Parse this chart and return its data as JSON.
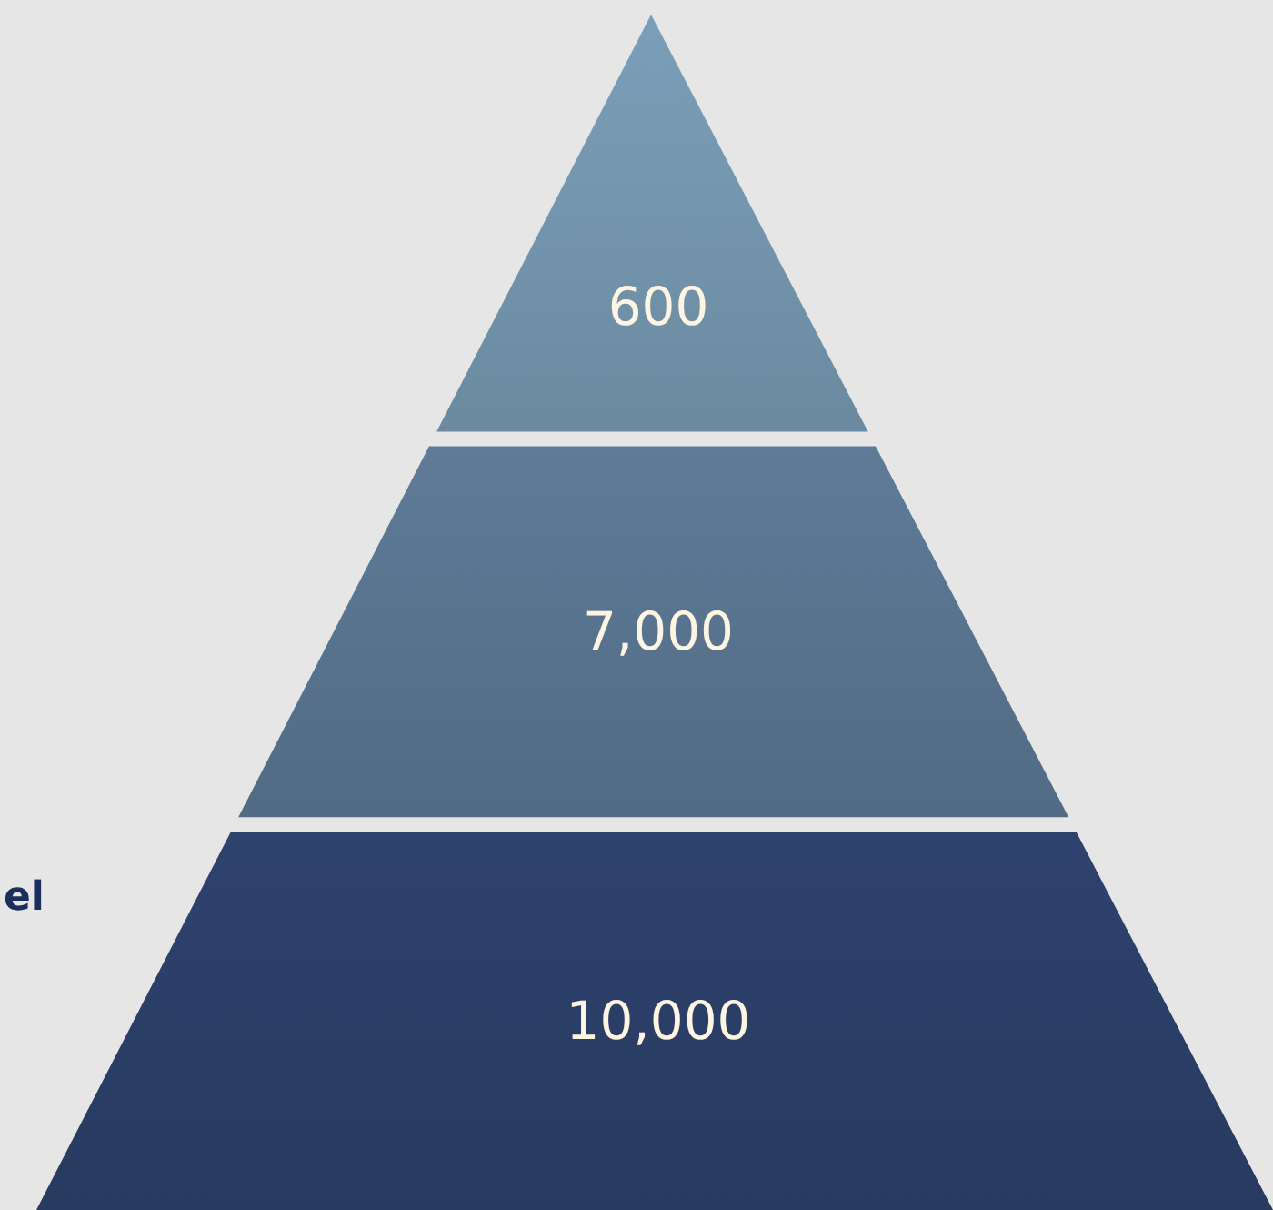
{
  "chart_data": {
    "type": "other",
    "values": [
      600,
      7000,
      10000
    ],
    "value_labels": [
      "600",
      "7,000",
      "10,000"
    ],
    "colors": [
      "#7597af",
      "#5a7590",
      "#2c3f68"
    ],
    "annotations": [
      "el"
    ]
  }
}
